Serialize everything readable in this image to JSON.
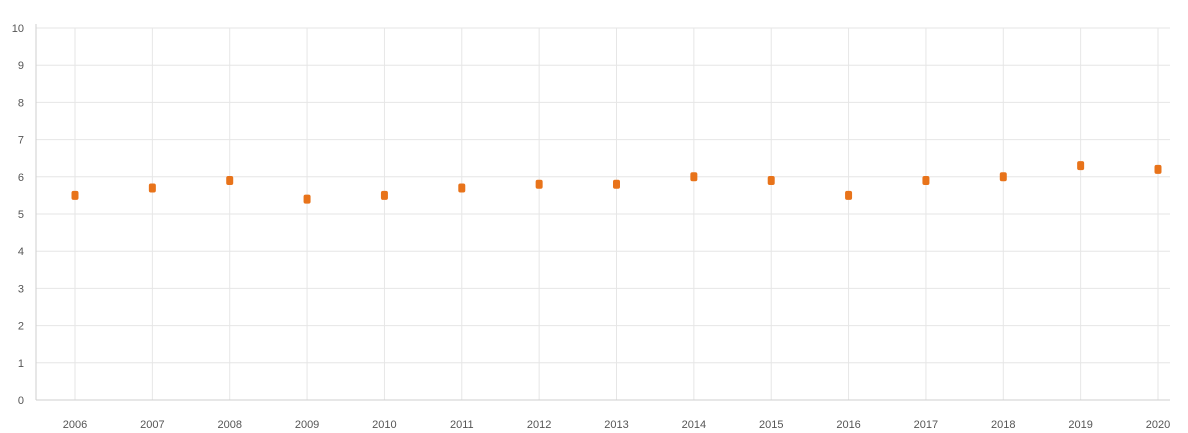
{
  "chart_data": {
    "type": "scatter",
    "x": [
      "2006",
      "2007",
      "2008",
      "2009",
      "2010",
      "2011",
      "2012",
      "2013",
      "2014",
      "2015",
      "2016",
      "2017",
      "2018",
      "2019",
      "2020"
    ],
    "series": [
      {
        "values": [
          5.5,
          5.7,
          5.9,
          5.4,
          5.5,
          5.7,
          5.8,
          5.8,
          6.0,
          5.9,
          5.5,
          5.9,
          6.0,
          6.3,
          6.2
        ],
        "color": "#e8731a"
      }
    ],
    "y_ticks": [
      "0",
      "1",
      "2",
      "3",
      "4",
      "5",
      "6",
      "7",
      "8",
      "9",
      "10"
    ],
    "ylim": [
      0,
      10
    ],
    "grid": true,
    "legend": "none"
  }
}
